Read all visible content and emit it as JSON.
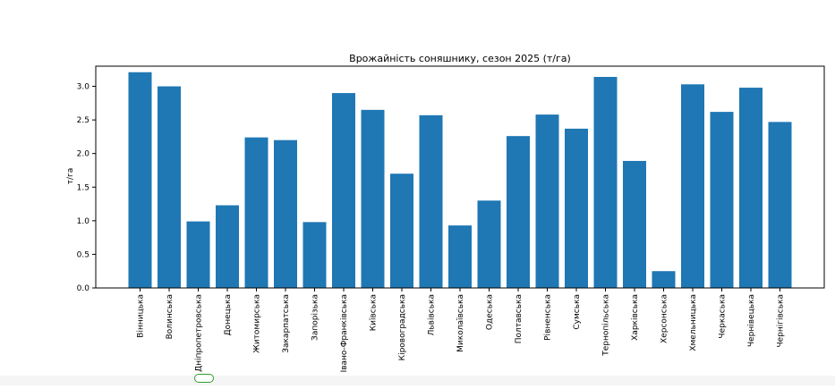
{
  "chart_data": {
    "type": "bar",
    "title": "Врожайність соняшнику, сезон 2025 (т/га)",
    "xlabel": "",
    "ylabel": "т/га",
    "ylim": [
      0,
      3.3
    ],
    "yticks": [
      "0.0",
      "0.5",
      "1.0",
      "1.5",
      "2.0",
      "2.5",
      "3.0"
    ],
    "grid": false,
    "color": "#1f77b4",
    "categories": [
      "Вінницька",
      "Волинська",
      "Дніпропетровська",
      "Донецька",
      "Житомирська",
      "Закарпатська",
      "Запорізька",
      "Івано-Франківська",
      "Київська",
      "Кіровоградська",
      "Львівська",
      "Миколаївська",
      "Одеська",
      "Полтавська",
      "Рівненська",
      "Сумська",
      "Тернопільська",
      "Харківська",
      "Херсонська",
      "Хмельницька",
      "Черкаська",
      "Чернівецька",
      "Чернігівська"
    ],
    "values": [
      3.21,
      3.0,
      0.99,
      1.23,
      2.24,
      2.2,
      0.98,
      2.9,
      2.65,
      1.7,
      2.57,
      0.93,
      1.3,
      2.26,
      2.58,
      2.37,
      3.14,
      1.89,
      0.25,
      3.03,
      2.62,
      2.98,
      2.47
    ]
  }
}
